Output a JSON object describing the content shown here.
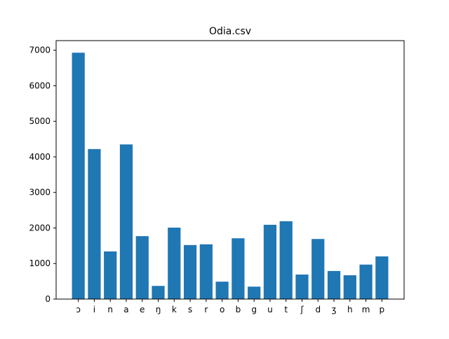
{
  "chart_data": {
    "type": "bar",
    "title": "Odia.csv",
    "xlabel": "",
    "ylabel": "",
    "categories": [
      "ɔ",
      "i",
      "n",
      "a",
      "e",
      "ŋ",
      "k",
      "s",
      "r",
      "o",
      "b",
      "g",
      "u",
      "t",
      "ʃ",
      "d",
      "ʒ",
      "h",
      "m",
      "p"
    ],
    "values": [
      6930,
      4220,
      1340,
      4350,
      1770,
      370,
      2010,
      1520,
      1540,
      490,
      1710,
      350,
      2090,
      2190,
      690,
      1690,
      790,
      670,
      970,
      1200
    ],
    "ylim": [
      0,
      7000
    ],
    "yticks": [
      0,
      1000,
      2000,
      3000,
      4000,
      5000,
      6000,
      7000
    ],
    "bar_color": "#1f77b4",
    "grid": false,
    "legend": "none"
  }
}
